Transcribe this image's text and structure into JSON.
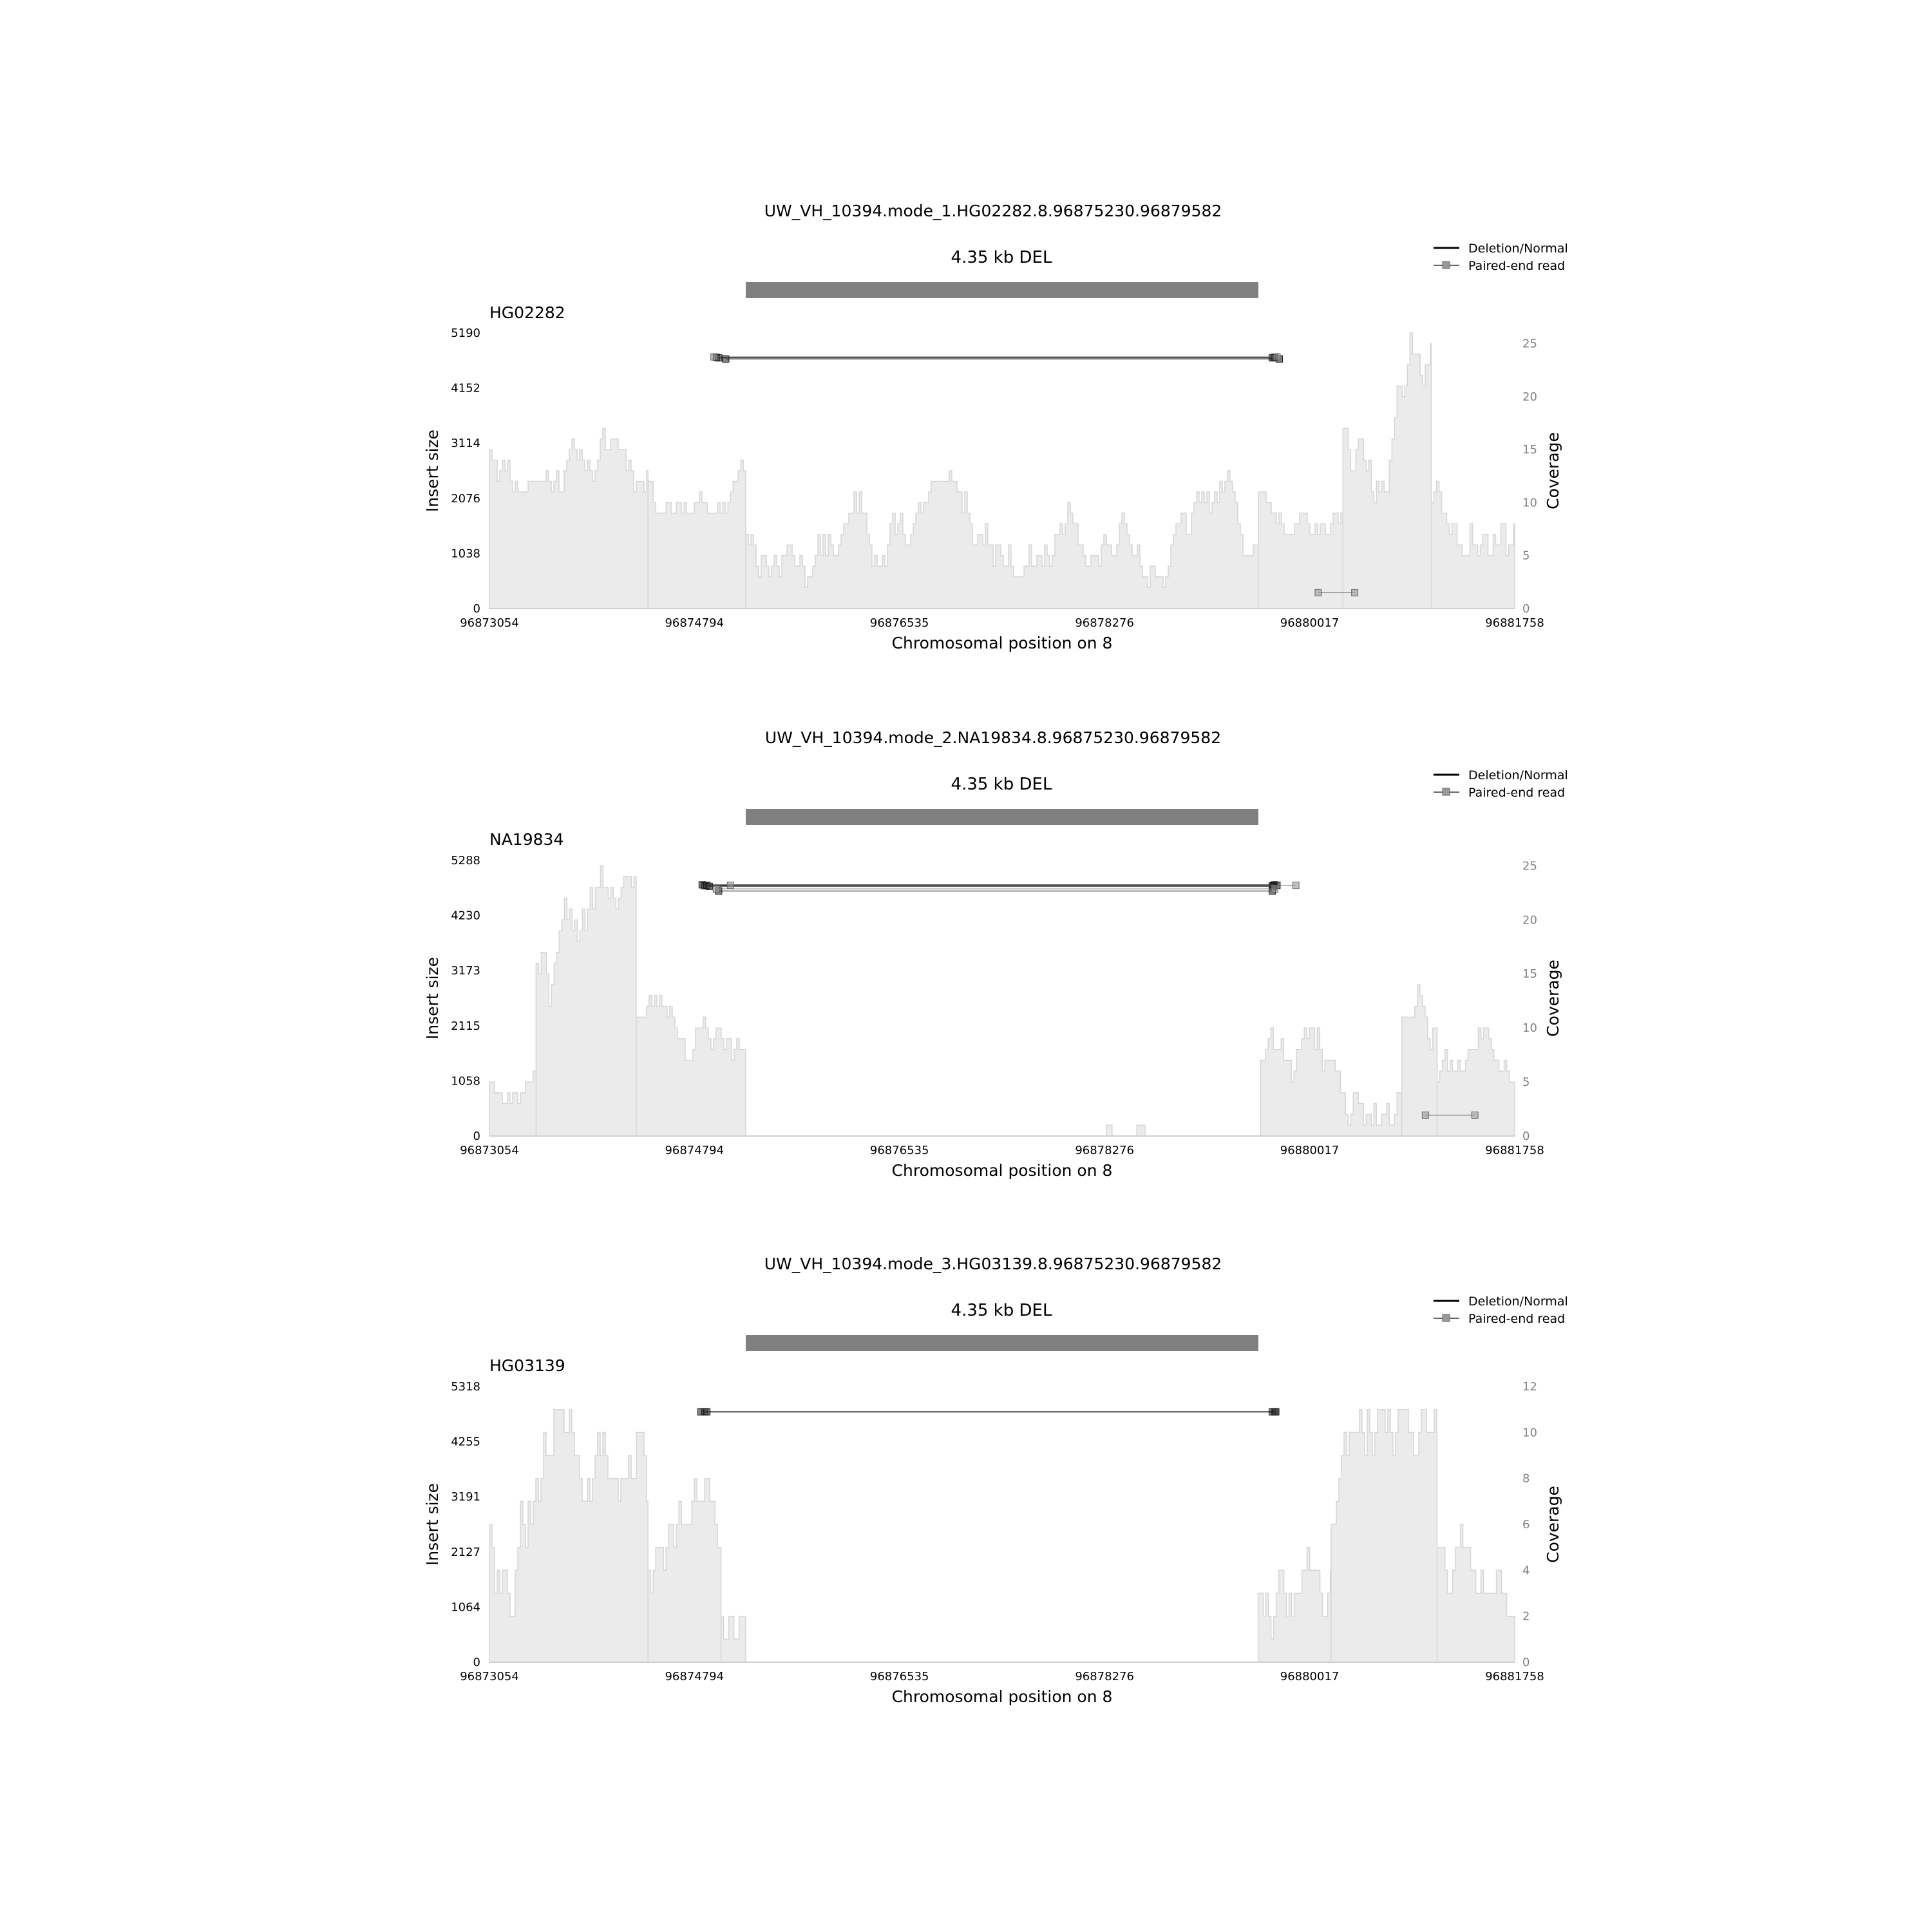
{
  "colors": {
    "coverage_fill": "#ebebeb",
    "coverage_line": "#d6d6d6",
    "sv_bar": "#808080",
    "axis": "#d0d0d0",
    "text": "#000000",
    "right_tick_text": "#808080",
    "deletion_line": "#000000",
    "read_line": "#666666"
  },
  "legend": {
    "deletion_label": "Deletion/Normal",
    "read_label": "Paired-end read"
  },
  "chart_data": [
    {
      "type": "area",
      "title": "UW_VH_10394.mode_1.HG02282.8.96875230.96879582",
      "sv_label": "4.35 kb DEL",
      "sv_start": 96875230,
      "sv_end": 96879582,
      "sample": "HG02282",
      "xlabel": "Chromosomal position on 8",
      "ylabel_left": "Insert size",
      "ylabel_right": "Coverage",
      "xlim": [
        96873054,
        96881758
      ],
      "x_ticks": [
        "96873054",
        "96874794",
        "96876535",
        "96878276",
        "96880017",
        "96881758"
      ],
      "ylim_left": [
        0,
        5190
      ],
      "y_ticks_left": [
        "0",
        "1038",
        "2076",
        "3114",
        "4152",
        "5190"
      ],
      "ylim_right": [
        0,
        26
      ],
      "y_ticks_right": [
        "0",
        "5",
        "10",
        "15",
        "20",
        "25"
      ],
      "coverage": [
        {
          "from": 96873054,
          "to": 96874400,
          "low": 11,
          "high": 21,
          "seed": 11
        },
        {
          "from": 96874400,
          "to": 96875230,
          "low": 9,
          "high": 16,
          "seed": 12
        },
        {
          "from": 96875230,
          "to": 96879582,
          "low": 2,
          "high": 13,
          "seed": 13
        },
        {
          "from": 96879582,
          "to": 96880300,
          "low": 7,
          "high": 16,
          "seed": 14
        },
        {
          "from": 96880300,
          "to": 96881050,
          "low": 10,
          "high": 26,
          "seed": 15
        },
        {
          "from": 96881050,
          "to": 96881758,
          "low": 4,
          "high": 18,
          "seed": 16
        }
      ],
      "reads": [
        {
          "start": 96874980,
          "end": 96879720,
          "insert": 4730,
          "kind": "deletion"
        },
        {
          "start": 96875000,
          "end": 96879700,
          "insert": 4720,
          "kind": "deletion"
        },
        {
          "start": 96875060,
          "end": 96879760,
          "insert": 4700,
          "kind": "deletion"
        },
        {
          "start": 96874960,
          "end": 96879740,
          "insert": 4740,
          "kind": "read"
        },
        {
          "start": 96880090,
          "end": 96880400,
          "insert": 300,
          "kind": "read"
        }
      ]
    },
    {
      "type": "area",
      "title": "UW_VH_10394.mode_2.NA19834.8.96875230.96879582",
      "sv_label": "4.35 kb DEL",
      "sv_start": 96875230,
      "sv_end": 96879582,
      "sample": "NA19834",
      "xlabel": "Chromosomal position on 8",
      "ylabel_left": "Insert size",
      "ylabel_right": "Coverage",
      "xlim": [
        96873054,
        96881758
      ],
      "x_ticks": [
        "96873054",
        "96874794",
        "96876535",
        "96878276",
        "96880017",
        "96881758"
      ],
      "ylim_left": [
        0,
        5288
      ],
      "y_ticks_left": [
        "0",
        "1058",
        "2115",
        "3173",
        "4230",
        "5288"
      ],
      "ylim_right": [
        0,
        25.5
      ],
      "y_ticks_right": [
        "0",
        "5",
        "10",
        "15",
        "20",
        "25"
      ],
      "coverage": [
        {
          "from": 96873054,
          "to": 96873450,
          "low": 3,
          "high": 9,
          "seed": 21
        },
        {
          "from": 96873450,
          "to": 96874300,
          "low": 10,
          "high": 25.5,
          "seed": 22
        },
        {
          "from": 96874300,
          "to": 96875230,
          "low": 7,
          "high": 17,
          "seed": 23
        },
        {
          "from": 96878290,
          "to": 96878340,
          "low": 1,
          "high": 1,
          "seed": 24
        },
        {
          "from": 96878550,
          "to": 96878620,
          "low": 1,
          "high": 1,
          "seed": 25
        },
        {
          "from": 96879600,
          "to": 96880800,
          "low": 1,
          "high": 15,
          "seed": 26
        },
        {
          "from": 96880800,
          "to": 96881100,
          "low": 6,
          "high": 17,
          "seed": 27
        },
        {
          "from": 96881100,
          "to": 96881758,
          "low": 1,
          "high": 10,
          "seed": 28
        }
      ],
      "reads": [
        {
          "start": 96874860,
          "end": 96879720,
          "insert": 4820,
          "kind": "deletion"
        },
        {
          "start": 96874880,
          "end": 96879700,
          "insert": 4800,
          "kind": "deletion"
        },
        {
          "start": 96874900,
          "end": 96879740,
          "insert": 4810,
          "kind": "deletion"
        },
        {
          "start": 96874920,
          "end": 96879710,
          "insert": 4790,
          "kind": "deletion"
        },
        {
          "start": 96875000,
          "end": 96879700,
          "insert": 4700,
          "kind": "deletion"
        },
        {
          "start": 96875100,
          "end": 96879900,
          "insert": 4810,
          "kind": "read"
        },
        {
          "start": 96874980,
          "end": 96879720,
          "insert": 4740,
          "kind": "read"
        },
        {
          "start": 96881000,
          "end": 96881420,
          "insert": 400,
          "kind": "read"
        }
      ]
    },
    {
      "type": "area",
      "title": "UW_VH_10394.mode_3.HG03139.8.96875230.96879582",
      "sv_label": "4.35 kb DEL",
      "sv_start": 96875230,
      "sv_end": 96879582,
      "sample": "HG03139",
      "xlabel": "Chromosomal position on 8",
      "ylabel_left": "Insert size",
      "ylabel_right": "Coverage",
      "xlim": [
        96873054,
        96881758
      ],
      "x_ticks": [
        "96873054",
        "96874794",
        "96876535",
        "96878276",
        "96880017",
        "96881758"
      ],
      "ylim_left": [
        0,
        5318
      ],
      "y_ticks_left": [
        "0",
        "1064",
        "2127",
        "3191",
        "4255",
        "5318"
      ],
      "ylim_right": [
        0,
        12
      ],
      "y_ticks_right": [
        "0",
        "2",
        "4",
        "6",
        "8",
        "10",
        "12"
      ],
      "coverage": [
        {
          "from": 96873054,
          "to": 96874400,
          "low": 2,
          "high": 12,
          "seed": 31
        },
        {
          "from": 96874400,
          "to": 96875020,
          "low": 1,
          "high": 8,
          "seed": 32
        },
        {
          "from": 96875020,
          "to": 96875230,
          "low": 0,
          "high": 4,
          "seed": 33
        },
        {
          "from": 96879580,
          "to": 96880200,
          "low": 1,
          "high": 7,
          "seed": 34
        },
        {
          "from": 96880200,
          "to": 96881100,
          "low": 3,
          "high": 11,
          "seed": 35
        },
        {
          "from": 96881100,
          "to": 96881758,
          "low": 2,
          "high": 9,
          "seed": 36
        }
      ],
      "reads": [
        {
          "start": 96874850,
          "end": 96879720,
          "insert": 4830,
          "kind": "deletion"
        },
        {
          "start": 96874880,
          "end": 96879700,
          "insert": 4830,
          "kind": "deletion"
        },
        {
          "start": 96874900,
          "end": 96879730,
          "insert": 4830,
          "kind": "deletion"
        }
      ]
    }
  ]
}
